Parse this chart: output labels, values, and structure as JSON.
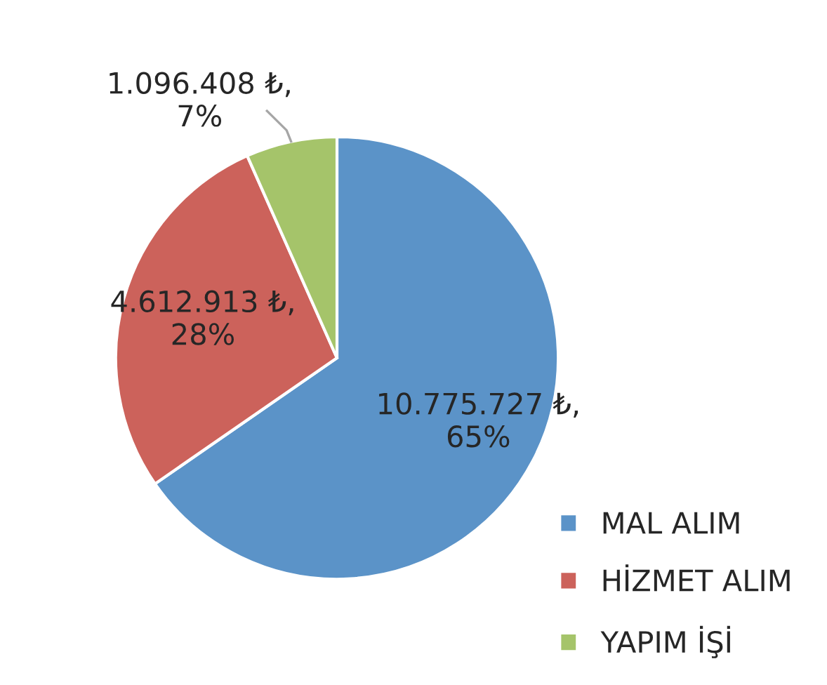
{
  "chart_data": {
    "type": "pie",
    "categories": [
      "MAL ALIM",
      "HİZMET ALIM",
      "YAPIM İŞİ"
    ],
    "values": [
      10775727,
      4612913,
      1096408
    ],
    "colors": [
      "#5b93c8",
      "#cc625b",
      "#a5c46a"
    ],
    "value_labels": [
      "10.775.727 ₺,\n65%",
      "4.612.913 ₺,\n28%",
      "1.096.408 ₺,\n7%"
    ],
    "legend": "bottom right"
  }
}
